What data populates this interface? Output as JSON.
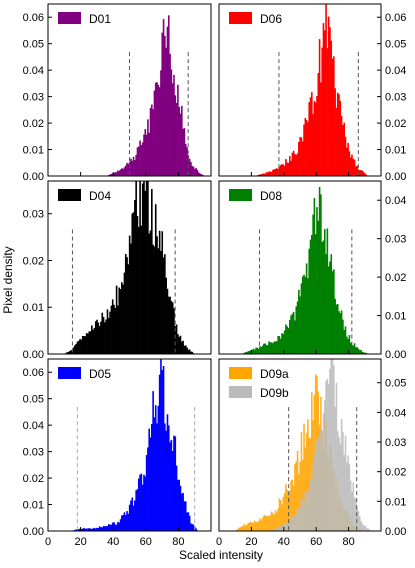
{
  "figure": {
    "xlabel": "Scaled intensity",
    "ylabel": "Pixel density"
  },
  "chart_data": [
    {
      "type": "bar",
      "panel": "left-row-1",
      "xlim": [
        0,
        100
      ],
      "ylim": [
        0,
        0.065
      ],
      "y_ticks": [
        "0.00",
        "0.01",
        "0.02",
        "0.03",
        "0.04",
        "0.05",
        "0.06"
      ],
      "y_axis_side": "left",
      "x_tick_labels_shown": false,
      "legend": "top-left",
      "series": [
        {
          "name": "D01",
          "color": "#800080",
          "curve": [
            [
              36,
              0
            ],
            [
              40,
              0.001
            ],
            [
              44,
              0.002
            ],
            [
              48,
              0.004
            ],
            [
              52,
              0.006
            ],
            [
              56,
              0.011
            ],
            [
              60,
              0.016
            ],
            [
              64,
              0.025
            ],
            [
              68,
              0.038
            ],
            [
              71,
              0.05
            ],
            [
              73,
              0.058
            ],
            [
              75,
              0.05
            ],
            [
              77,
              0.04
            ],
            [
              79,
              0.034
            ],
            [
              81,
              0.026
            ],
            [
              83,
              0.018
            ],
            [
              85,
              0.01
            ],
            [
              87,
              0.006
            ],
            [
              90,
              0.003
            ],
            [
              93,
              0.001
            ],
            [
              96,
              0
            ]
          ]
        }
      ],
      "vlines": [
        {
          "x": 50,
          "color": "#555555"
        },
        {
          "x": 86,
          "color": "#555555"
        }
      ]
    },
    {
      "type": "bar",
      "panel": "right-row-1",
      "xlim": [
        0,
        100
      ],
      "ylim": [
        0,
        0.065
      ],
      "y_ticks": [
        "0.00",
        "0.01",
        "0.02",
        "0.03",
        "0.04",
        "0.05",
        "0.06"
      ],
      "y_axis_side": "right",
      "x_tick_labels_shown": false,
      "legend": "top-left",
      "series": [
        {
          "name": "D06",
          "color": "#ff0000",
          "curve": [
            [
              22,
              0
            ],
            [
              28,
              0.001
            ],
            [
              33,
              0.002
            ],
            [
              38,
              0.004
            ],
            [
              43,
              0.006
            ],
            [
              48,
              0.01
            ],
            [
              52,
              0.016
            ],
            [
              56,
              0.024
            ],
            [
              60,
              0.036
            ],
            [
              63,
              0.046
            ],
            [
              65,
              0.054
            ],
            [
              67,
              0.06
            ],
            [
              69,
              0.048
            ],
            [
              71,
              0.04
            ],
            [
              73,
              0.03
            ],
            [
              76,
              0.02
            ],
            [
              79,
              0.012
            ],
            [
              82,
              0.007
            ],
            [
              86,
              0.003
            ],
            [
              92,
              0
            ]
          ]
        }
      ],
      "vlines": [
        {
          "x": 37,
          "color": "#555555"
        },
        {
          "x": 86,
          "color": "#555555"
        }
      ]
    },
    {
      "type": "bar",
      "panel": "left-row-2",
      "xlim": [
        0,
        100
      ],
      "ylim": [
        0,
        0.037
      ],
      "y_ticks": [
        "0.00",
        "0.01",
        "0.02",
        "0.03"
      ],
      "y_axis_side": "left",
      "x_tick_labels_shown": false,
      "legend": "top-left",
      "series": [
        {
          "name": "D04",
          "color": "#000000",
          "curve": [
            [
              10,
              0
            ],
            [
              15,
              0.001
            ],
            [
              20,
              0.003
            ],
            [
              25,
              0.005
            ],
            [
              30,
              0.007
            ],
            [
              35,
              0.008
            ],
            [
              40,
              0.01
            ],
            [
              44,
              0.014
            ],
            [
              48,
              0.02
            ],
            [
              52,
              0.027
            ],
            [
              55,
              0.032
            ],
            [
              57,
              0.0345
            ],
            [
              60,
              0.033
            ],
            [
              63,
              0.03
            ],
            [
              66,
              0.028
            ],
            [
              69,
              0.024
            ],
            [
              72,
              0.019
            ],
            [
              75,
              0.012
            ],
            [
              78,
              0.007
            ],
            [
              82,
              0.003
            ],
            [
              86,
              0.001
            ],
            [
              90,
              0
            ]
          ]
        }
      ],
      "vlines": [
        {
          "x": 15,
          "color": "#555555"
        },
        {
          "x": 78,
          "color": "#555555"
        }
      ]
    },
    {
      "type": "bar",
      "panel": "right-row-2",
      "xlim": [
        0,
        100
      ],
      "ylim": [
        0,
        0.045
      ],
      "y_ticks": [
        "0.00",
        "0.01",
        "0.02",
        "0.03",
        "0.04"
      ],
      "y_axis_side": "right",
      "x_tick_labels_shown": false,
      "legend": "top-left",
      "series": [
        {
          "name": "D08",
          "color": "#008000",
          "curve": [
            [
              14,
              0
            ],
            [
              20,
              0.001
            ],
            [
              26,
              0.002
            ],
            [
              32,
              0.003
            ],
            [
              38,
              0.005
            ],
            [
              44,
              0.008
            ],
            [
              48,
              0.012
            ],
            [
              52,
              0.018
            ],
            [
              55,
              0.024
            ],
            [
              58,
              0.032
            ],
            [
              60,
              0.038
            ],
            [
              62,
              0.042
            ],
            [
              64,
              0.036
            ],
            [
              67,
              0.028
            ],
            [
              70,
              0.02
            ],
            [
              74,
              0.012
            ],
            [
              78,
              0.006
            ],
            [
              82,
              0.003
            ],
            [
              87,
              0.001
            ],
            [
              92,
              0
            ]
          ]
        }
      ],
      "vlines": [
        {
          "x": 25,
          "color": "#555555"
        },
        {
          "x": 82,
          "color": "#555555"
        }
      ]
    },
    {
      "type": "bar",
      "panel": "left-row-3",
      "xlim": [
        0,
        100
      ],
      "ylim": [
        0,
        0.065
      ],
      "y_ticks": [
        "0.00",
        "0.01",
        "0.02",
        "0.03",
        "0.04",
        "0.05",
        "0.06"
      ],
      "y_axis_side": "left",
      "x_ticks": [
        "0",
        "20",
        "40",
        "60",
        "80"
      ],
      "legend": "top-left",
      "series": [
        {
          "name": "D05",
          "color": "#0000ff",
          "curve": [
            [
              14,
              0
            ],
            [
              20,
              0.001
            ],
            [
              28,
              0.001
            ],
            [
              36,
              0.002
            ],
            [
              42,
              0.003
            ],
            [
              47,
              0.006
            ],
            [
              51,
              0.01
            ],
            [
              55,
              0.016
            ],
            [
              59,
              0.024
            ],
            [
              62,
              0.034
            ],
            [
              65,
              0.046
            ],
            [
              68,
              0.054
            ],
            [
              70,
              0.06
            ],
            [
              72,
              0.05
            ],
            [
              74,
              0.042
            ],
            [
              76,
              0.036
            ],
            [
              79,
              0.026
            ],
            [
              82,
              0.016
            ],
            [
              85,
              0.008
            ],
            [
              88,
              0.003
            ],
            [
              92,
              0
            ]
          ]
        }
      ],
      "vlines": [
        {
          "x": 18,
          "color": "#aaaaaa"
        },
        {
          "x": 90,
          "color": "#aaaaaa"
        }
      ]
    },
    {
      "type": "bar",
      "panel": "right-row-3",
      "xlim": [
        0,
        100
      ],
      "ylim": [
        0,
        0.058
      ],
      "y_ticks": [
        "0.00",
        "0.01",
        "0.02",
        "0.03",
        "0.04",
        "0.05"
      ],
      "y_axis_side": "right",
      "x_ticks": [
        "0",
        "20",
        "40",
        "60",
        "80"
      ],
      "legend": "top-left",
      "series": [
        {
          "name": "D09a",
          "color": "#ffa500",
          "curve": [
            [
              10,
              0
            ],
            [
              15,
              0.002
            ],
            [
              22,
              0.003
            ],
            [
              30,
              0.005
            ],
            [
              36,
              0.008
            ],
            [
              42,
              0.014
            ],
            [
              48,
              0.022
            ],
            [
              53,
              0.032
            ],
            [
              57,
              0.04
            ],
            [
              60,
              0.044
            ],
            [
              62,
              0.04
            ],
            [
              64,
              0.036
            ],
            [
              67,
              0.03
            ],
            [
              70,
              0.022
            ],
            [
              73,
              0.014
            ],
            [
              77,
              0.008
            ],
            [
              81,
              0.004
            ],
            [
              85,
              0.001
            ],
            [
              90,
              0
            ]
          ]
        },
        {
          "name": "D09b",
          "color": "#bbbbbb",
          "curve": [
            [
              30,
              0
            ],
            [
              36,
              0.001
            ],
            [
              42,
              0.003
            ],
            [
              48,
              0.006
            ],
            [
              53,
              0.012
            ],
            [
              57,
              0.02
            ],
            [
              61,
              0.03
            ],
            [
              64,
              0.04
            ],
            [
              67,
              0.046
            ],
            [
              70,
              0.05
            ],
            [
              72,
              0.046
            ],
            [
              74,
              0.04
            ],
            [
              77,
              0.03
            ],
            [
              80,
              0.022
            ],
            [
              83,
              0.014
            ],
            [
              86,
              0.006
            ],
            [
              89,
              0.002
            ],
            [
              94,
              0
            ]
          ]
        }
      ],
      "vlines": [
        {
          "x": 43,
          "color": "#555555"
        },
        {
          "x": 85,
          "color": "#555555"
        }
      ]
    }
  ]
}
